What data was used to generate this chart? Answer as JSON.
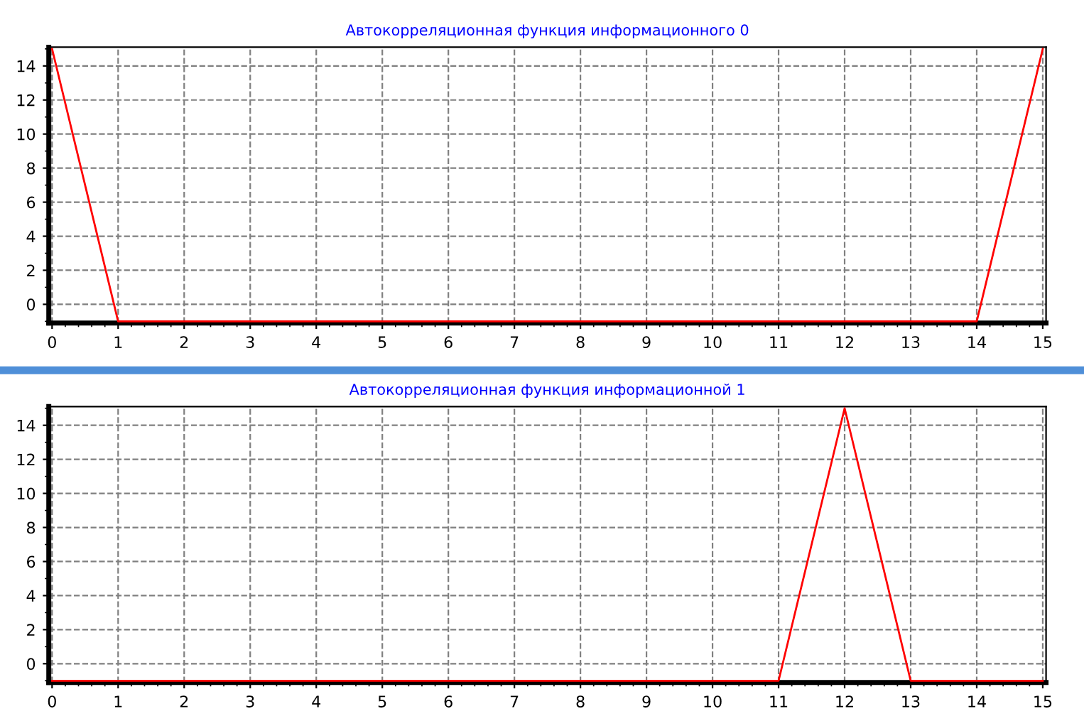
{
  "chart_data": [
    {
      "type": "line",
      "title": "Автокорреляционная функция информационного 0",
      "x": [
        0,
        1,
        2,
        3,
        4,
        5,
        6,
        7,
        8,
        9,
        10,
        11,
        12,
        13,
        14,
        15
      ],
      "series": [
        {
          "color": "#ff0000",
          "values": [
            15,
            -1,
            -1,
            -1,
            -1,
            -1,
            -1,
            -1,
            -1,
            -1,
            -1,
            -1,
            -1,
            -1,
            -1,
            15
          ]
        }
      ],
      "xlim": [
        -0.05,
        15.05
      ],
      "xticks": [
        0,
        1,
        2,
        3,
        4,
        5,
        6,
        7,
        8,
        9,
        10,
        11,
        12,
        13,
        14,
        15
      ],
      "ylim": [
        -1.1,
        15.1
      ],
      "yticks": [
        0,
        2,
        4,
        6,
        8,
        10,
        12,
        14
      ],
      "grid": true,
      "marker": "none",
      "line_style": "solid"
    },
    {
      "type": "line",
      "title": "Автокорреляционная функция информационной 1",
      "x": [
        0,
        1,
        2,
        3,
        4,
        5,
        6,
        7,
        8,
        9,
        10,
        11,
        12,
        13,
        14,
        15
      ],
      "series": [
        {
          "color": "#ff0000",
          "values": [
            -1,
            -1,
            -1,
            -1,
            -1,
            -1,
            -1,
            -1,
            -1,
            -1,
            -1,
            -1,
            15,
            -1,
            -1,
            -1
          ]
        }
      ],
      "xlim": [
        -0.05,
        15.05
      ],
      "xticks": [
        0,
        1,
        2,
        3,
        4,
        5,
        6,
        7,
        8,
        9,
        10,
        11,
        12,
        13,
        14,
        15
      ],
      "ylim": [
        -1.1,
        15.1
      ],
      "yticks": [
        0,
        2,
        4,
        6,
        8,
        10,
        12,
        14
      ],
      "grid": true,
      "marker": "none",
      "line_style": "solid"
    }
  ]
}
